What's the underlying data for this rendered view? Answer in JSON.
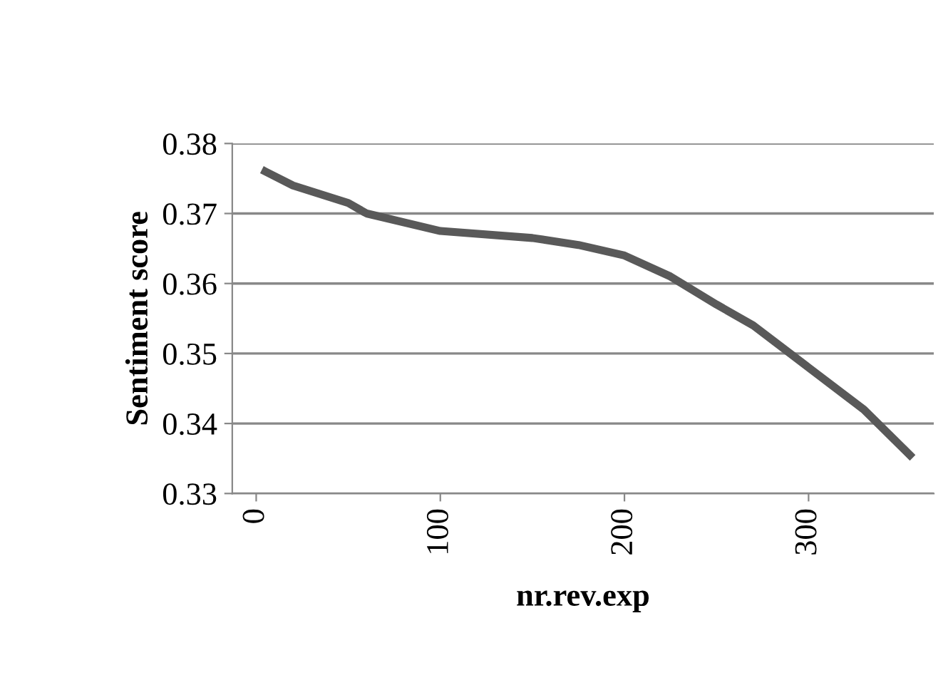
{
  "chart_data": {
    "type": "line",
    "xlabel": "nr.rev.exp",
    "ylabel": "Sentiment score",
    "series": [
      {
        "color": "#595959",
        "x": [
          5,
          20,
          50,
          60,
          100,
          150,
          175,
          200,
          225,
          250,
          270,
          300,
          330,
          355
        ],
        "values": [
          0.376,
          0.374,
          0.3715,
          0.37,
          0.3675,
          0.3665,
          0.3655,
          0.364,
          0.361,
          0.357,
          0.354,
          0.348,
          0.342,
          0.3355
        ]
      }
    ],
    "xlim": [
      -13,
      368
    ],
    "xticks": [
      0,
      100,
      200,
      300
    ],
    "ylim": [
      0.33,
      0.38
    ],
    "yticks": [
      {
        "value": 0.33,
        "label": "0.33"
      },
      {
        "value": 0.34,
        "label": "0.34"
      },
      {
        "value": 0.35,
        "label": "0.35"
      },
      {
        "value": 0.36,
        "label": "0.36"
      },
      {
        "value": 0.37,
        "label": "0.37"
      },
      {
        "value": 0.38,
        "label": "0.38"
      }
    ],
    "grid": "y",
    "marker": "none",
    "line_style": "solid",
    "legend": false
  }
}
